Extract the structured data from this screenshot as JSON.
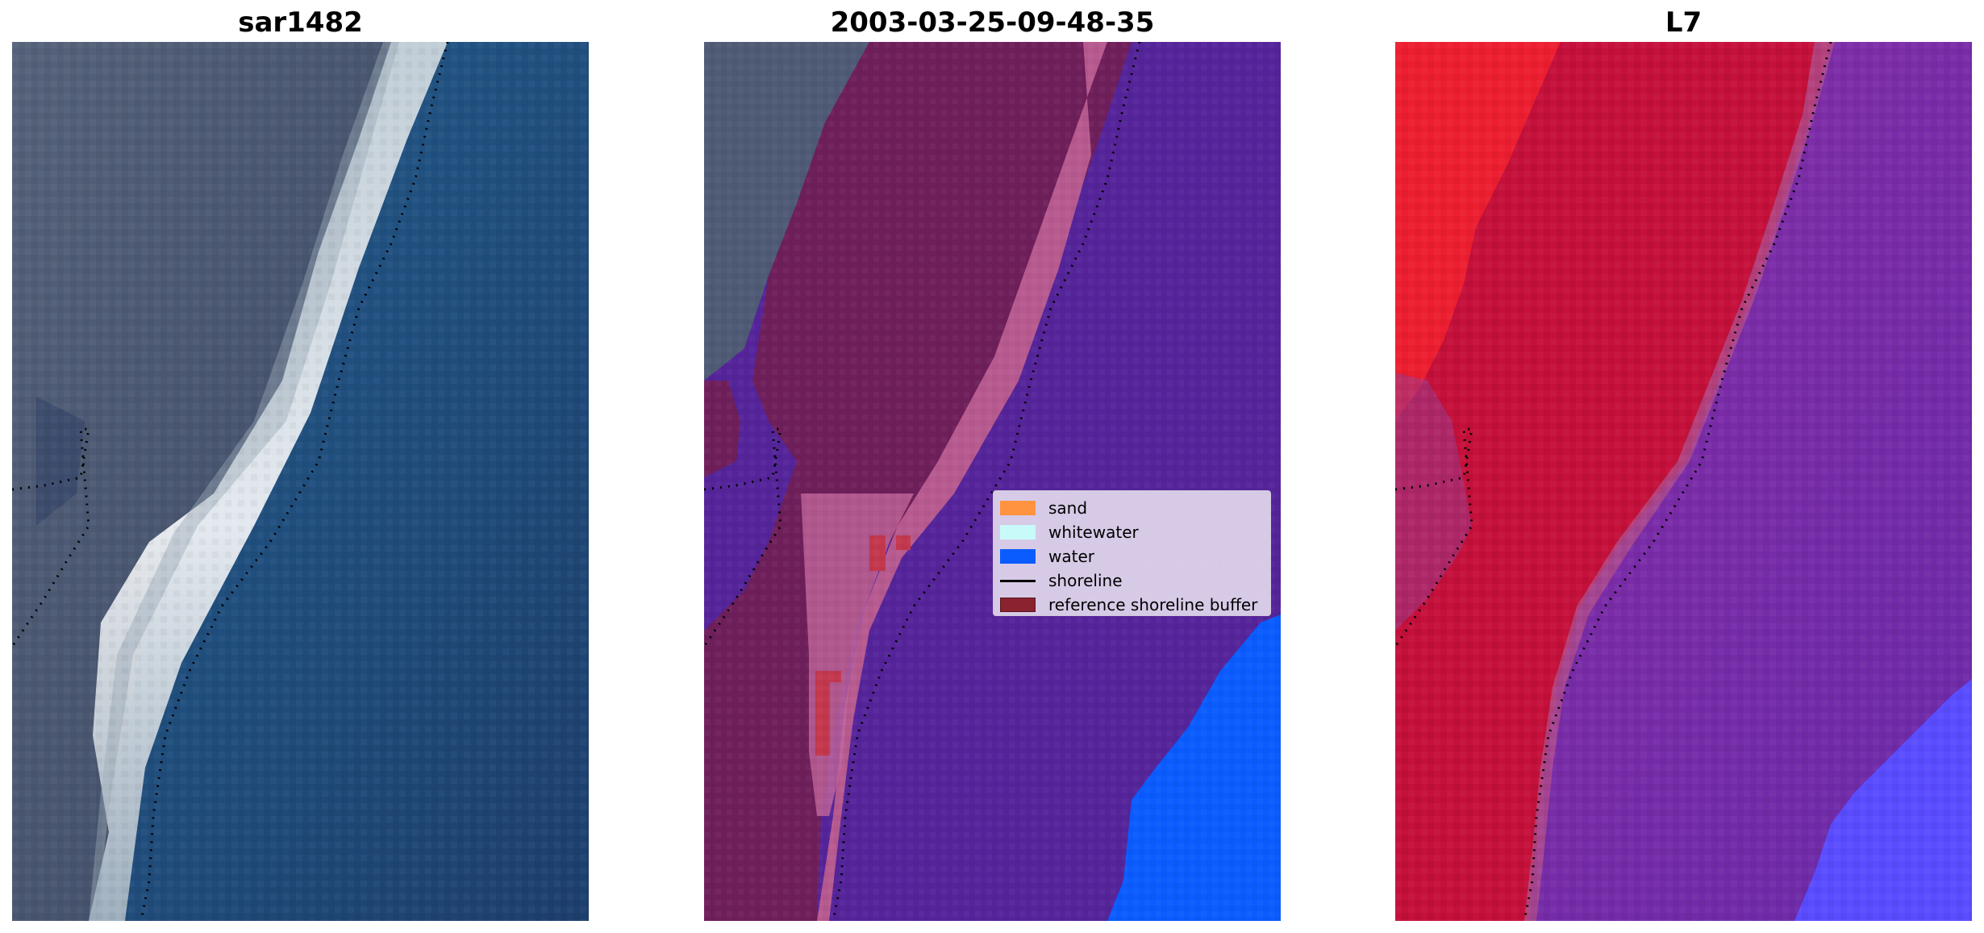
{
  "panels": [
    {
      "title": "sar1482"
    },
    {
      "title": "2003-03-25-09-48-35"
    },
    {
      "title": "L7"
    }
  ],
  "legend": {
    "items": [
      {
        "label": "sand",
        "color": "#ff9340"
      },
      {
        "label": "whitewater",
        "color": "#c8fafa"
      },
      {
        "label": "water",
        "color": "#0a5cff"
      },
      {
        "label": "shoreline",
        "color": "#000000"
      },
      {
        "label": "reference shoreline buffer",
        "color": "#8b2230"
      }
    ]
  },
  "colors": {
    "land_rgb": "#4e5a72",
    "ocean_rgb": "#1f5c8c",
    "foam_rgb": "#e9eef0",
    "land_class": "#4f5a75",
    "buffer_class": "#6e1f5a",
    "water_class": "#55249a",
    "water_bright": "#0a5cff",
    "land_false": "#ec1830",
    "sand_false": "#c4103a",
    "water_false": "#7a2ba8",
    "deep_false": "#5a4cff"
  }
}
